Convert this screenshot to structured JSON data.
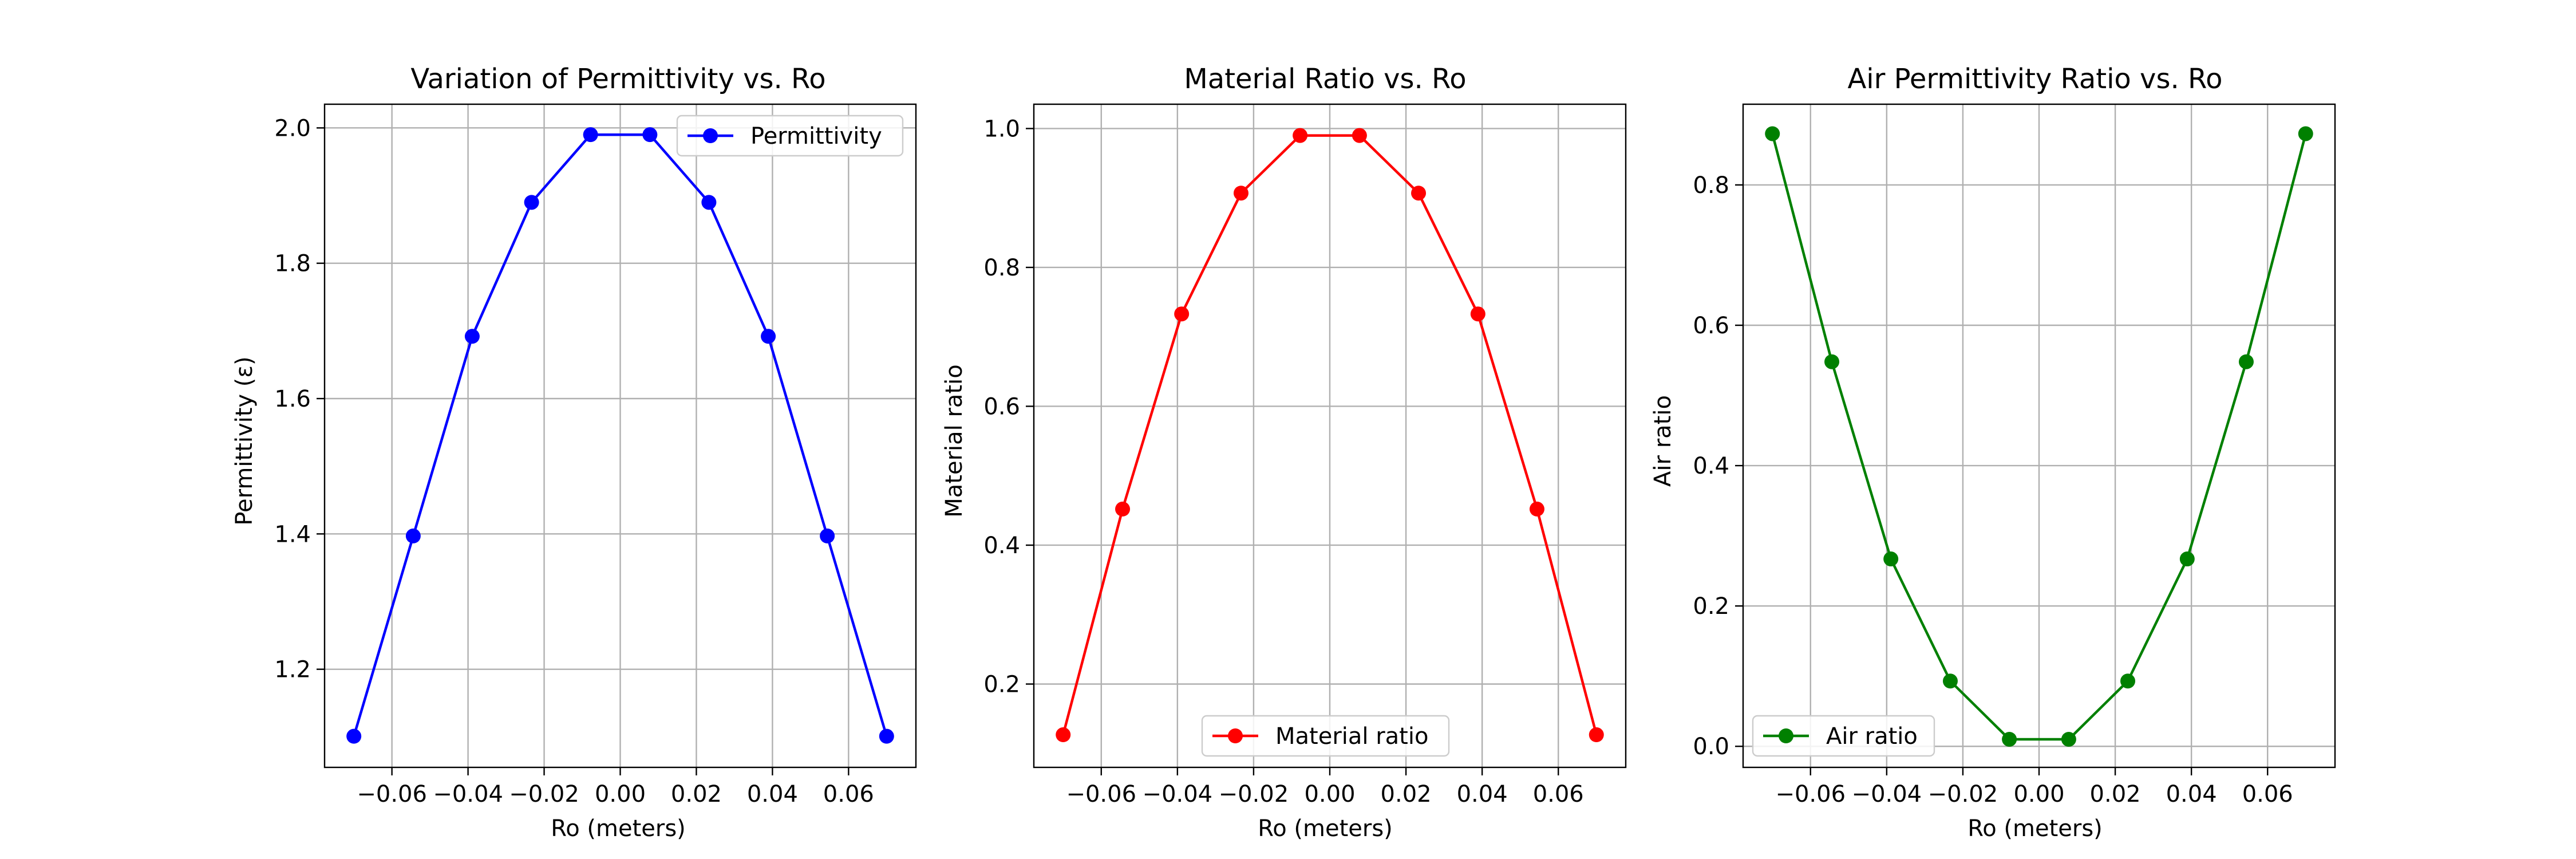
{
  "chart_data": [
    {
      "type": "line",
      "title": "Variation of Permittivity vs. Ro",
      "xlabel": "Ro (meters)",
      "ylabel": "Permittivity (ε)",
      "xlim": [
        -0.0777,
        0.0777
      ],
      "ylim": [
        1.055,
        2.035
      ],
      "xticks": [
        -0.06,
        -0.04,
        -0.02,
        0.0,
        0.02,
        0.04,
        0.06
      ],
      "xtick_labels": [
        "−0.06",
        "−0.04",
        "−0.02",
        "0.00",
        "0.02",
        "0.04",
        "0.06"
      ],
      "yticks": [
        1.2,
        1.4,
        1.6,
        1.8,
        2.0
      ],
      "ytick_labels": [
        "1.2",
        "1.4",
        "1.6",
        "1.8",
        "2.0"
      ],
      "grid": true,
      "legend": "upper right",
      "x": [
        -0.07,
        -0.0544,
        -0.0389,
        -0.0233,
        -0.0078,
        0.0078,
        0.0233,
        0.0389,
        0.0544,
        0.07
      ],
      "series": [
        {
          "name": "Permittivity",
          "color": "#0000ff",
          "marker": "circle",
          "values": [
            1.101,
            1.397,
            1.692,
            1.89,
            1.99,
            1.99,
            1.89,
            1.692,
            1.397,
            1.101
          ]
        }
      ]
    },
    {
      "type": "line",
      "title": "Material Ratio vs. Ro",
      "xlabel": "Ro (meters)",
      "ylabel": "Material ratio",
      "xlim": [
        -0.0777,
        0.0777
      ],
      "ylim": [
        0.08,
        1.035
      ],
      "xticks": [
        -0.06,
        -0.04,
        -0.02,
        0.0,
        0.02,
        0.04,
        0.06
      ],
      "xtick_labels": [
        "−0.06",
        "−0.04",
        "−0.02",
        "0.00",
        "0.02",
        "0.04",
        "0.06"
      ],
      "yticks": [
        0.2,
        0.4,
        0.6,
        0.8,
        1.0
      ],
      "ytick_labels": [
        "0.2",
        "0.4",
        "0.6",
        "0.8",
        "1.0"
      ],
      "grid": true,
      "legend": "lower center",
      "x": [
        -0.07,
        -0.0544,
        -0.0389,
        -0.0233,
        -0.0078,
        0.0078,
        0.0233,
        0.0389,
        0.0544,
        0.07
      ],
      "series": [
        {
          "name": "Material ratio",
          "color": "#ff0000",
          "marker": "circle",
          "values": [
            0.127,
            0.452,
            0.733,
            0.907,
            0.99,
            0.99,
            0.907,
            0.733,
            0.452,
            0.127
          ]
        }
      ]
    },
    {
      "type": "line",
      "title": "Air Permittivity Ratio vs. Ro",
      "xlabel": "Ro (meters)",
      "ylabel": "Air ratio",
      "xlim": [
        -0.0777,
        0.0777
      ],
      "ylim": [
        -0.03,
        0.915
      ],
      "xticks": [
        -0.06,
        -0.04,
        -0.02,
        0.0,
        0.02,
        0.04,
        0.06
      ],
      "xtick_labels": [
        "−0.06",
        "−0.04",
        "−0.02",
        "0.00",
        "0.02",
        "0.04",
        "0.06"
      ],
      "yticks": [
        0.0,
        0.2,
        0.4,
        0.6,
        0.8
      ],
      "ytick_labels": [
        "0.0",
        "0.2",
        "0.4",
        "0.6",
        "0.8"
      ],
      "grid": true,
      "legend": "lower left",
      "x": [
        -0.07,
        -0.0544,
        -0.0389,
        -0.0233,
        -0.0078,
        0.0078,
        0.0233,
        0.0389,
        0.0544,
        0.07
      ],
      "series": [
        {
          "name": "Air ratio",
          "color": "#008000",
          "marker": "circle",
          "values": [
            0.873,
            0.548,
            0.267,
            0.093,
            0.01,
            0.01,
            0.093,
            0.267,
            0.548,
            0.873
          ]
        }
      ]
    }
  ]
}
